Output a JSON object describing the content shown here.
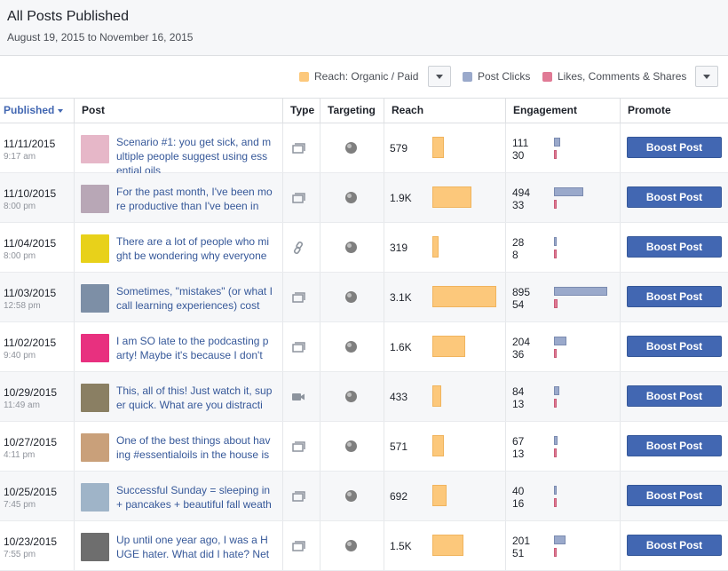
{
  "page": {
    "title": "All Posts Published",
    "date_range": "August 19, 2015 to November 16, 2015"
  },
  "legend": {
    "reach": {
      "label": "Reach: Organic / Paid",
      "color": "#fcc87b"
    },
    "clicks": {
      "label": "Post Clicks",
      "color": "#9aa9cb"
    },
    "engagement": {
      "label": "Likes, Comments & Shares",
      "color": "#e07a95"
    }
  },
  "columns": {
    "published": "Published",
    "post": "Post",
    "type": "Type",
    "targeting": "Targeting",
    "reach": "Reach",
    "engagement": "Engagement",
    "promote": "Promote"
  },
  "boost_label": "Boost Post",
  "rows": [
    {
      "date": "11/11/2015",
      "time": "9:17 am",
      "text": "Scenario #1: you get sick, and multiple people suggest using essential oils",
      "type": "status",
      "reach": "579",
      "reach_value": 579,
      "clicks": "111",
      "clicks_value": 111,
      "likes": "30",
      "likes_value": 30,
      "thumb": "#e6b7c8"
    },
    {
      "date": "11/10/2015",
      "time": "8:00 pm",
      "text": "For the past month, I've been more productive than I've been in",
      "type": "status",
      "reach": "1.9K",
      "reach_value": 1900,
      "clicks": "494",
      "clicks_value": 494,
      "likes": "33",
      "likes_value": 33,
      "thumb": "#b8a7b6"
    },
    {
      "date": "11/04/2015",
      "time": "8:00 pm",
      "text": "There are a lot of people who might be wondering why everyone",
      "type": "link",
      "reach": "319",
      "reach_value": 319,
      "clicks": "28",
      "clicks_value": 28,
      "likes": "8",
      "likes_value": 8,
      "thumb": "#e8d11a"
    },
    {
      "date": "11/03/2015",
      "time": "12:58 pm",
      "text": "Sometimes, \"mistakes\" (or what I call learning experiences) cost",
      "type": "status",
      "reach": "3.1K",
      "reach_value": 3100,
      "clicks": "895",
      "clicks_value": 895,
      "likes": "54",
      "likes_value": 54,
      "thumb": "#7d8fa6"
    },
    {
      "date": "11/02/2015",
      "time": "9:40 pm",
      "text": "I am SO late to the podcasting party! Maybe it's because I don't",
      "type": "status",
      "reach": "1.6K",
      "reach_value": 1600,
      "clicks": "204",
      "clicks_value": 204,
      "likes": "36",
      "likes_value": 36,
      "thumb": "#e8307f"
    },
    {
      "date": "10/29/2015",
      "time": "11:49 am",
      "text": "This, all of this! Just watch it, super quick. What are you distracti",
      "type": "video",
      "reach": "433",
      "reach_value": 433,
      "clicks": "84",
      "clicks_value": 84,
      "likes": "13",
      "likes_value": 13,
      "thumb": "#8a7f63"
    },
    {
      "date": "10/27/2015",
      "time": "4:11 pm",
      "text": "One of the best things about having #essentialoils in the house is",
      "type": "status",
      "reach": "571",
      "reach_value": 571,
      "clicks": "67",
      "clicks_value": 67,
      "likes": "13",
      "likes_value": 13,
      "thumb": "#c9a07a"
    },
    {
      "date": "10/25/2015",
      "time": "7:45 pm",
      "text": "Successful Sunday = sleeping in + pancakes + beautiful fall weath",
      "type": "status",
      "reach": "692",
      "reach_value": 692,
      "clicks": "40",
      "clicks_value": 40,
      "likes": "16",
      "likes_value": 16,
      "thumb": "#9fb4c8"
    },
    {
      "date": "10/23/2015",
      "time": "7:55 pm",
      "text": "Up until one year ago, I was a HUGE hater. What did I hate? Net",
      "type": "status",
      "reach": "1.5K",
      "reach_value": 1500,
      "clicks": "201",
      "clicks_value": 201,
      "likes": "51",
      "likes_value": 51,
      "thumb": "#6e6e6e"
    }
  ]
}
